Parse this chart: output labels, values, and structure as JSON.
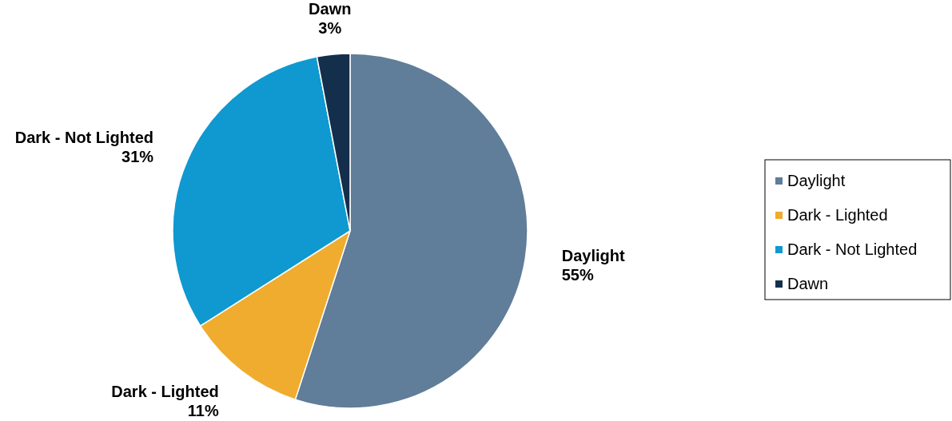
{
  "chart_data": {
    "type": "pie",
    "categories": [
      "Daylight",
      "Dark - Lighted",
      "Dark - Not Lighted",
      "Dawn"
    ],
    "values": [
      55,
      11,
      31,
      3
    ],
    "value_labels": [
      "55%",
      "11%",
      "31%",
      "3%"
    ],
    "colors": [
      "#607d99",
      "#f0ac2e",
      "#0f99d0",
      "#142f4c"
    ],
    "legend": "right"
  }
}
